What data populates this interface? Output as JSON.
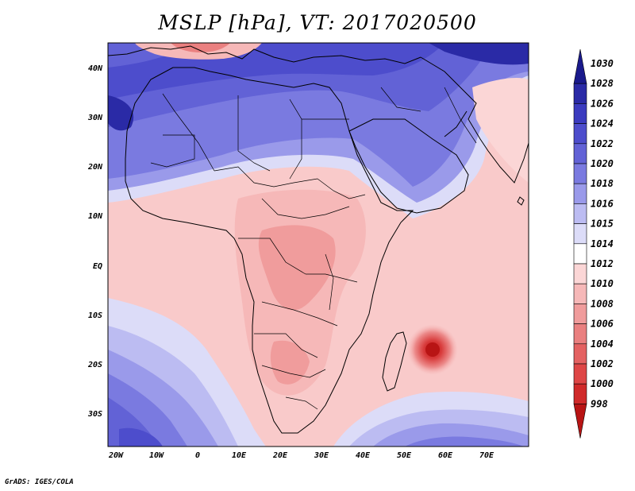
{
  "title": "MSLP [hPa], VT: 2017020500",
  "credit": "GrADS: IGES/COLA",
  "latitude_labels": [
    "40N",
    "30N",
    "20N",
    "10N",
    "EQ",
    "10S",
    "20S",
    "30S"
  ],
  "longitude_labels": [
    "20W",
    "10W",
    "0",
    "10E",
    "20E",
    "30E",
    "40E",
    "50E",
    "60E",
    "70E"
  ],
  "colorbar": {
    "levels": [
      {
        "label": "1030",
        "color": "#1a1a8c"
      },
      {
        "label": "1028",
        "color": "#2a2aa6"
      },
      {
        "label": "1026",
        "color": "#3b3bbf"
      },
      {
        "label": "1024",
        "color": "#4d4dcc"
      },
      {
        "label": "1022",
        "color": "#6262d6"
      },
      {
        "label": "1020",
        "color": "#7a7ae0"
      },
      {
        "label": "1018",
        "color": "#9a9aea"
      },
      {
        "label": "1016",
        "color": "#bcbcf2"
      },
      {
        "label": "1015",
        "color": "#dcdcf8"
      },
      {
        "label": "1014",
        "color": "#ffffff"
      },
      {
        "label": "1012",
        "color": "#fbd6d6"
      },
      {
        "label": "1010",
        "color": "#f6b8b8"
      },
      {
        "label": "1008",
        "color": "#f09c9c"
      },
      {
        "label": "1006",
        "color": "#ea8080"
      },
      {
        "label": "1004",
        "color": "#e46262"
      },
      {
        "label": "1002",
        "color": "#de4646"
      },
      {
        "label": "1000",
        "color": "#d02a2a"
      },
      {
        "label": "998",
        "color": "#b81414"
      }
    ]
  }
}
